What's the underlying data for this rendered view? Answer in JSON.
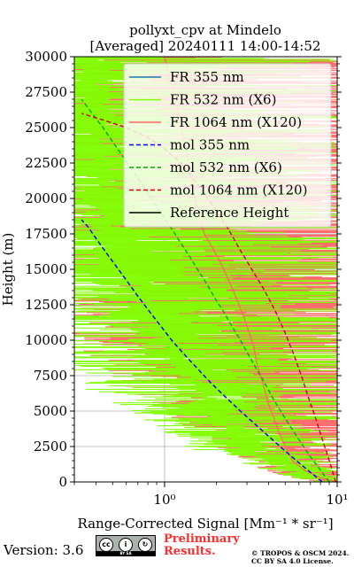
{
  "chart_data": {
    "type": "line",
    "title": "pollyxt_cpv at Mindelo",
    "subtitle": "[Averaged] 20240111 14:00-14:52",
    "xlabel": "Range-Corrected Signal [Mm⁻¹ * sr⁻¹]",
    "ylabel": "Height (m)",
    "xscale": "log",
    "xlim": [
      0.3,
      10
    ],
    "ylim": [
      0,
      30000
    ],
    "x_ticks": [
      1,
      10
    ],
    "x_tick_labels": [
      "10⁰",
      "10¹"
    ],
    "y_ticks": [
      0,
      2500,
      5000,
      7500,
      10000,
      12500,
      15000,
      17500,
      20000,
      22500,
      25000,
      27500,
      30000
    ],
    "y_tick_labels": [
      "0",
      "2500",
      "5000",
      "7500",
      "10000",
      "12500",
      "15000",
      "17500",
      "20000",
      "22500",
      "25000",
      "27500",
      "30000"
    ],
    "grid": true,
    "legend_position": "top-right",
    "series": [
      {
        "name": "FR 355 nm",
        "color": "#1f77b4",
        "style": "solid",
        "points": []
      },
      {
        "name": "FR 532 nm (X6)",
        "color": "#80ff00",
        "style": "solid",
        "points": [
          [
            10,
            0
          ],
          [
            8,
            300
          ],
          [
            6.5,
            700
          ],
          [
            5,
            1200
          ],
          [
            3.6,
            1800
          ],
          [
            2.9,
            2400
          ],
          [
            2.6,
            3000
          ],
          [
            2.4,
            3600
          ],
          [
            2.2,
            4200
          ],
          [
            2.0,
            4800
          ],
          [
            1.85,
            5400
          ],
          [
            1.75,
            6000
          ],
          [
            1.6,
            6600
          ],
          [
            1.5,
            7200
          ],
          [
            1.4,
            7800
          ],
          [
            1.3,
            8400
          ],
          [
            1.2,
            9000
          ],
          [
            1.12,
            9600
          ],
          [
            1.05,
            10200
          ],
          [
            1.0,
            10800
          ],
          [
            0.95,
            11400
          ],
          [
            0.9,
            12000
          ],
          [
            0.8,
            12800
          ],
          [
            0.75,
            13500
          ],
          [
            0.7,
            14500
          ],
          [
            0.6,
            15500
          ],
          [
            0.55,
            16500
          ],
          [
            0.5,
            17500
          ],
          [
            0.45,
            19000
          ],
          [
            0.42,
            21000
          ],
          [
            0.4,
            23000
          ],
          [
            0.38,
            25000
          ],
          [
            0.36,
            27000
          ],
          [
            0.35,
            30000
          ]
        ]
      },
      {
        "name": "FR 1064 nm (X120)",
        "color": "#ff6666",
        "style": "solid",
        "points": [
          [
            10,
            0
          ],
          [
            8,
            300
          ],
          [
            6.5,
            800
          ],
          [
            5.5,
            1500
          ],
          [
            5.0,
            2500
          ],
          [
            4.6,
            3500
          ],
          [
            4.3,
            4500
          ],
          [
            4.0,
            5500
          ],
          [
            3.8,
            6500
          ],
          [
            3.6,
            7500
          ],
          [
            3.4,
            8500
          ],
          [
            3.3,
            9500
          ],
          [
            3.1,
            10500
          ],
          [
            2.9,
            11500
          ],
          [
            2.7,
            12500
          ],
          [
            2.5,
            13500
          ],
          [
            2.3,
            14500
          ],
          [
            2.1,
            15500
          ],
          [
            1.9,
            16500
          ],
          [
            1.7,
            17500
          ],
          [
            1.6,
            18500
          ],
          [
            1.5,
            20000
          ],
          [
            1.4,
            22000
          ],
          [
            1.3,
            24000
          ],
          [
            1.2,
            26000
          ],
          [
            1.1,
            28000
          ],
          [
            1.0,
            30000
          ]
        ]
      },
      {
        "name": "mol 355 nm",
        "color": "#0000ff",
        "style": "dashed",
        "points": [
          [
            8.2,
            0
          ],
          [
            6.5,
            1000
          ],
          [
            5.2,
            2000
          ],
          [
            4.2,
            3000
          ],
          [
            3.4,
            4000
          ],
          [
            2.75,
            5000
          ],
          [
            2.25,
            6000
          ],
          [
            1.85,
            7000
          ],
          [
            1.55,
            8000
          ],
          [
            1.3,
            9000
          ],
          [
            1.1,
            10000
          ],
          [
            0.95,
            11000
          ],
          [
            0.82,
            12000
          ],
          [
            0.71,
            13000
          ],
          [
            0.62,
            14000
          ],
          [
            0.54,
            15000
          ],
          [
            0.47,
            16000
          ],
          [
            0.41,
            17000
          ],
          [
            0.36,
            18000
          ],
          [
            0.33,
            18500
          ]
        ]
      },
      {
        "name": "mol 532 nm (X6)",
        "color": "#00aa00",
        "style": "dashed",
        "points": [
          [
            9.0,
            0
          ],
          [
            7.8,
            1000
          ],
          [
            6.8,
            2000
          ],
          [
            6.0,
            3000
          ],
          [
            5.3,
            4000
          ],
          [
            4.7,
            5000
          ],
          [
            4.2,
            6000
          ],
          [
            3.8,
            7000
          ],
          [
            3.4,
            8000
          ],
          [
            3.05,
            9000
          ],
          [
            2.75,
            10000
          ],
          [
            2.45,
            11000
          ],
          [
            2.2,
            12000
          ],
          [
            1.95,
            13000
          ],
          [
            1.75,
            14000
          ],
          [
            1.55,
            15000
          ],
          [
            1.38,
            16000
          ],
          [
            1.22,
            17000
          ],
          [
            1.08,
            18000
          ],
          [
            0.95,
            19000
          ],
          [
            0.84,
            20000
          ],
          [
            0.74,
            21000
          ],
          [
            0.65,
            22000
          ],
          [
            0.57,
            23000
          ],
          [
            0.5,
            24000
          ],
          [
            0.44,
            25000
          ],
          [
            0.38,
            26000
          ],
          [
            0.33,
            27000
          ]
        ]
      },
      {
        "name": "mol 1064 nm (X120)",
        "color": "#cc0000",
        "style": "dashed",
        "points": [
          [
            9.8,
            0
          ],
          [
            9.0,
            1500
          ],
          [
            8.2,
            3000
          ],
          [
            7.5,
            4500
          ],
          [
            6.8,
            6000
          ],
          [
            6.2,
            7500
          ],
          [
            5.6,
            9000
          ],
          [
            5.0,
            10500
          ],
          [
            4.4,
            12000
          ],
          [
            3.8,
            13500
          ],
          [
            3.2,
            15000
          ],
          [
            2.7,
            16500
          ],
          [
            2.3,
            18000
          ],
          [
            1.9,
            19500
          ],
          [
            1.55,
            21000
          ],
          [
            1.25,
            22500
          ],
          [
            1.0,
            23500
          ],
          [
            0.8,
            24300
          ],
          [
            0.6,
            25000
          ],
          [
            0.45,
            25500
          ],
          [
            0.33,
            26000
          ]
        ]
      },
      {
        "name": "Reference Height",
        "color": "#000000",
        "style": "solid",
        "points": []
      }
    ]
  },
  "footer": {
    "version": "Version: 3.6",
    "license_badge": "BY SA",
    "preliminary_line1": "Preliminary",
    "preliminary_line2": "Results.",
    "copyright_line1": "© TROPOS & OSCM 2024.",
    "copyright_line2": "CC BY SA 4.0 License."
  }
}
